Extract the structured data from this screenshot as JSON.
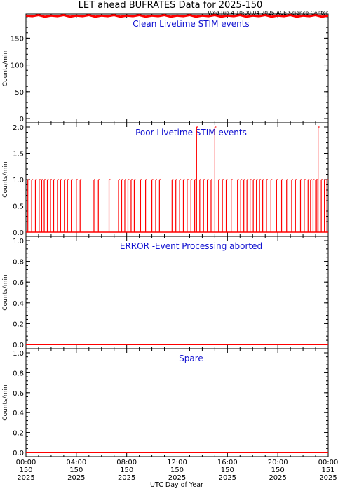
{
  "chart_title": "LET ahead BUFRATES Data for 2025-150",
  "timestamp": "Wed Jun  4 10:00:04 2025 ACE Science Center",
  "x_axis_label": "UTC Day of Year",
  "colors": {
    "series": "#ff0000",
    "panel_title": "#1010d0",
    "axes": "#000000"
  },
  "x_ticks": [
    {
      "time": "00:00",
      "day": "150",
      "year": "2025"
    },
    {
      "time": "04:00",
      "day": "150",
      "year": "2025"
    },
    {
      "time": "08:00",
      "day": "150",
      "year": "2025"
    },
    {
      "time": "12:00",
      "day": "150",
      "year": "2025"
    },
    {
      "time": "16:00",
      "day": "150",
      "year": "2025"
    },
    {
      "time": "20:00",
      "day": "150",
      "year": "2025"
    },
    {
      "time": "00:00",
      "day": "151",
      "year": "2025"
    }
  ],
  "chart_data": [
    {
      "type": "line",
      "title": "Clean Livetime STIM events",
      "ylabel": "Counts/min",
      "ylim": [
        0,
        195
      ],
      "yticks": [
        "0",
        "50",
        "100",
        "150"
      ],
      "xlim_hours": [
        0,
        24
      ],
      "series": [
        {
          "values": [
            [
              0.0,
              192
            ],
            [
              0.5,
              191
            ],
            [
              1.0,
              193
            ],
            [
              1.5,
              190
            ],
            [
              2.0,
              192
            ],
            [
              2.5,
              191
            ],
            [
              3.0,
              193
            ],
            [
              3.5,
              190
            ],
            [
              4.0,
              192
            ],
            [
              4.5,
              191
            ],
            [
              5.0,
              193
            ],
            [
              5.5,
              190
            ],
            [
              6.0,
              192
            ],
            [
              6.5,
              191
            ],
            [
              7.0,
              193
            ],
            [
              7.5,
              190
            ],
            [
              8.0,
              192
            ],
            [
              8.5,
              191
            ],
            [
              9.0,
              193
            ],
            [
              9.5,
              190
            ],
            [
              10.0,
              192
            ],
            [
              10.5,
              191
            ],
            [
              11.0,
              193
            ],
            [
              11.5,
              190
            ],
            [
              12.0,
              192
            ],
            [
              12.5,
              191
            ],
            [
              13.0,
              193
            ],
            [
              13.5,
              190
            ],
            [
              14.0,
              192
            ],
            [
              14.5,
              191
            ],
            [
              15.0,
              193
            ],
            [
              15.5,
              190
            ],
            [
              16.0,
              192
            ],
            [
              16.5,
              191
            ],
            [
              17.0,
              193
            ],
            [
              17.5,
              190
            ],
            [
              18.0,
              192
            ],
            [
              18.5,
              191
            ],
            [
              19.0,
              193
            ],
            [
              19.5,
              190
            ],
            [
              20.0,
              192
            ],
            [
              20.5,
              191
            ],
            [
              21.0,
              193
            ],
            [
              21.5,
              190
            ],
            [
              22.0,
              192
            ],
            [
              22.5,
              191
            ],
            [
              23.0,
              193
            ],
            [
              23.5,
              190
            ],
            [
              24.0,
              192
            ]
          ]
        }
      ]
    },
    {
      "type": "line",
      "title": "Poor Livetime STIM events",
      "ylabel": "Counts/min",
      "ylim": [
        0,
        2
      ],
      "yticks": [
        "0.0",
        "0.5",
        "1.0",
        "1.5",
        "2.0"
      ],
      "xlim_hours": [
        0,
        24
      ],
      "series": [
        {
          "spikes": [
            [
              0.15,
              1
            ],
            [
              0.45,
              1
            ],
            [
              0.75,
              1
            ],
            [
              1.05,
              1
            ],
            [
              1.25,
              1
            ],
            [
              1.45,
              1
            ],
            [
              1.7,
              1
            ],
            [
              1.95,
              1
            ],
            [
              2.2,
              1
            ],
            [
              2.5,
              1
            ],
            [
              2.75,
              1
            ],
            [
              3.05,
              1
            ],
            [
              3.3,
              1
            ],
            [
              3.6,
              1
            ],
            [
              4.0,
              1
            ],
            [
              4.3,
              1
            ],
            [
              5.4,
              1
            ],
            [
              5.75,
              1
            ],
            [
              6.6,
              1
            ],
            [
              7.35,
              1
            ],
            [
              7.6,
              1
            ],
            [
              7.85,
              1
            ],
            [
              8.1,
              1
            ],
            [
              8.35,
              1
            ],
            [
              8.6,
              1
            ],
            [
              9.1,
              1
            ],
            [
              9.5,
              1
            ],
            [
              10.0,
              1
            ],
            [
              10.3,
              1
            ],
            [
              10.6,
              1
            ],
            [
              11.6,
              1
            ],
            [
              11.9,
              1
            ],
            [
              12.2,
              1
            ],
            [
              12.5,
              1
            ],
            [
              12.8,
              1
            ],
            [
              13.1,
              1
            ],
            [
              13.4,
              1
            ],
            [
              13.55,
              2
            ],
            [
              13.8,
              1
            ],
            [
              14.1,
              1
            ],
            [
              14.4,
              1
            ],
            [
              14.7,
              1
            ],
            [
              15.0,
              2
            ],
            [
              15.3,
              1
            ],
            [
              15.6,
              1
            ],
            [
              15.9,
              1
            ],
            [
              16.3,
              1
            ],
            [
              16.8,
              1
            ],
            [
              17.05,
              1
            ],
            [
              17.3,
              1
            ],
            [
              17.55,
              1
            ],
            [
              17.8,
              1
            ],
            [
              18.05,
              1
            ],
            [
              18.3,
              1
            ],
            [
              18.55,
              1
            ],
            [
              18.8,
              1
            ],
            [
              19.1,
              1
            ],
            [
              19.45,
              1
            ],
            [
              19.9,
              1
            ],
            [
              20.3,
              1
            ],
            [
              20.7,
              1
            ],
            [
              21.1,
              1
            ],
            [
              21.4,
              1
            ],
            [
              21.8,
              1
            ],
            [
              22.1,
              1
            ],
            [
              22.4,
              1
            ],
            [
              22.6,
              1
            ],
            [
              22.8,
              1
            ],
            [
              23.0,
              1
            ],
            [
              23.1,
              1
            ],
            [
              23.2,
              2
            ],
            [
              23.45,
              1
            ],
            [
              23.7,
              1
            ],
            [
              23.9,
              1
            ]
          ]
        }
      ]
    },
    {
      "type": "line",
      "title": "ERROR -Event Processing aborted",
      "ylabel": "Counts/min",
      "ylim": [
        0,
        1
      ],
      "yticks": [
        "0.0",
        "0.2",
        "0.4",
        "0.6",
        "0.8",
        "1.0"
      ],
      "xlim_hours": [
        0,
        24
      ],
      "series": [
        {
          "values": [
            [
              0,
              0
            ],
            [
              24,
              0
            ]
          ]
        }
      ]
    },
    {
      "type": "line",
      "title": "Spare",
      "ylabel": "Counts/min",
      "ylim": [
        0,
        1
      ],
      "yticks": [
        "0.0",
        "0.2",
        "0.4",
        "0.6",
        "0.8",
        "1.0"
      ],
      "xlim_hours": [
        0,
        24
      ],
      "series": [
        {
          "values": [
            [
              0,
              0
            ],
            [
              24,
              0
            ]
          ]
        }
      ]
    }
  ]
}
